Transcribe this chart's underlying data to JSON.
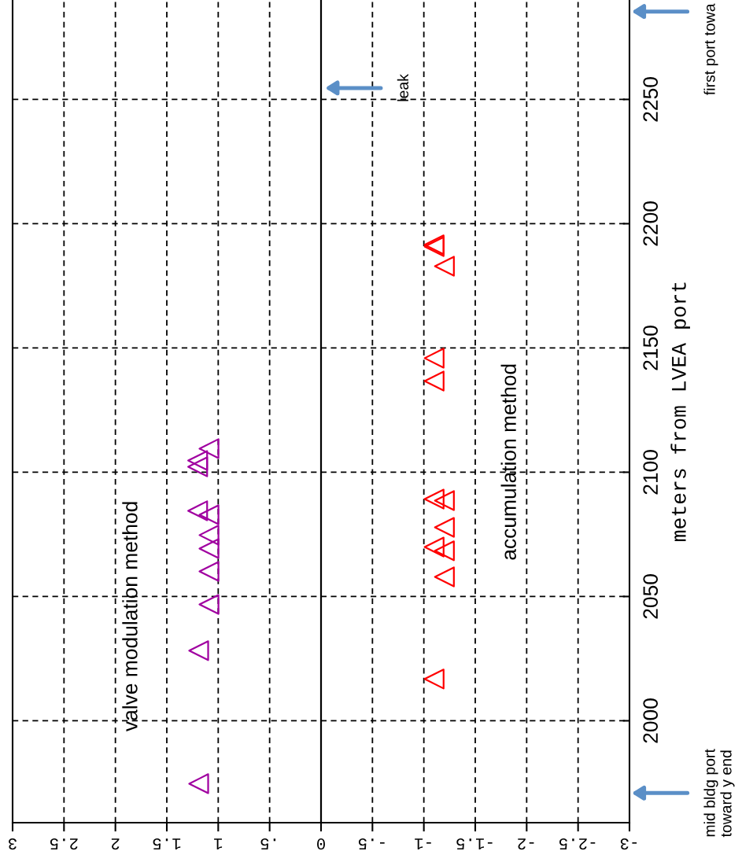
{
  "chart_data": {
    "type": "scatter",
    "ylabel": "meters from LVEA port",
    "xlim": [
      3,
      -3
    ],
    "xticks": [
      3,
      {
        "value": 2.5,
        "label": "2.5"
      },
      2,
      {
        "value": 1.5,
        "label": "1.5"
      },
      1,
      {
        "value": 0.5,
        "label": ".5"
      },
      0,
      {
        "value": -0.5,
        "label": "-.5"
      },
      -1,
      {
        "value": -1.5,
        "label": "-1.5"
      },
      -2,
      {
        "value": -2.5,
        "label": "-2.5"
      },
      -3
    ],
    "ylim": [
      1959,
      2290
    ],
    "yticks": [
      2000,
      2050,
      2100,
      2150,
      2200,
      2250
    ],
    "grid": true,
    "legend": false,
    "marker": "triangle",
    "series": [
      {
        "name": "valve modulation method",
        "color": "#a000a0",
        "x": [
          1.19,
          1.19,
          1.09,
          1.09,
          1.09,
          1.09,
          1.09,
          1.2,
          1.2,
          1.2,
          1.09
        ],
        "values": [
          1974.7,
          2028.2,
          2046.8,
          2060.1,
          2069.3,
          2074.7,
          2082.9,
          2084.5,
          2102.2,
          2104.7,
          2109.5
        ]
      },
      {
        "name": "accumulation method",
        "color": "#ff0000",
        "x": [
          -1.1,
          -1.2,
          -1.1,
          -1.2,
          -1.2,
          -1.1,
          -1.2,
          -1.1,
          -1.1,
          -1.2,
          -1.1,
          -1.1
        ],
        "values": [
          2016.8,
          2057.9,
          2069.9,
          2068.4,
          2077.8,
          2089.2,
          2088.6,
          2136.7,
          2145.9,
          2182.9,
          2190.8,
          2191.5
        ]
      }
    ],
    "ref_lines": [
      {
        "axis": "x",
        "value": 0,
        "color": "#000000",
        "line_style": "solid"
      }
    ],
    "annotations": [
      "leak",
      "mid bldg port\ntoward y end",
      "first port towa"
    ]
  }
}
